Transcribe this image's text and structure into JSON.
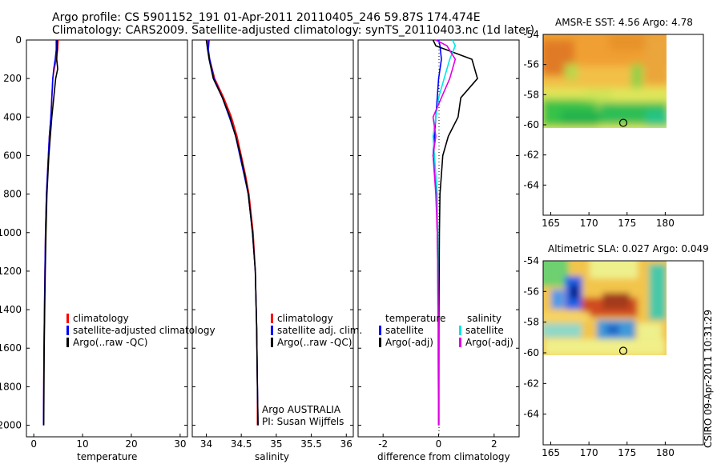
{
  "header": {
    "line1": "Argo profile: CS 5901152_191 01-Apr-2011 20110405_246 59.87S 174.474E",
    "line2": "Climatology: CARS2009. Satellite-adjusted climatology: synTS_20110403.nc (1d later)"
  },
  "footer": {
    "vertical_stamp": "CSIRO 09-Apr-2011 10:31:29"
  },
  "colors": {
    "climatology": "#ff0000",
    "satellite": "#0000ff",
    "argo": "#000000",
    "salinity_satellite": "#00e5e5",
    "salinity_argo": "#e000e0"
  },
  "chart_data": [
    {
      "type": "line",
      "xlabel": "temperature",
      "ylabel": "",
      "xlim": [
        -1.5,
        31.5
      ],
      "ylim": [
        2060,
        0
      ],
      "x_ticks": [
        "0",
        "10",
        "20",
        "30"
      ],
      "y_ticks": [
        "0",
        "200",
        "400",
        "600",
        "800",
        "1000",
        "1200",
        "1400",
        "1600",
        "1800",
        "2000"
      ],
      "legend": [
        "climatology",
        "satellite-adjusted climatology",
        "Argo(..raw -QC)"
      ],
      "series": [
        {
          "name": "climatology",
          "color": "red",
          "x": [
            5.0,
            4.9,
            4.6,
            4.2,
            3.9,
            3.7,
            3.5,
            3.2,
            3.0,
            2.8,
            2.6,
            2.4,
            2.3,
            2.2,
            2.1,
            2.05,
            2.0
          ],
          "y": [
            0,
            50,
            100,
            150,
            200,
            300,
            400,
            500,
            600,
            700,
            800,
            1000,
            1200,
            1400,
            1600,
            1800,
            2000
          ]
        },
        {
          "name": "satellite-adjusted climatology",
          "color": "blue",
          "x": [
            4.6,
            4.6,
            4.4,
            4.1,
            3.9,
            3.7,
            3.5,
            3.2,
            3.0,
            2.8,
            2.6,
            2.4,
            2.3,
            2.2,
            2.1,
            2.05,
            2.0
          ],
          "y": [
            0,
            50,
            100,
            150,
            200,
            300,
            400,
            500,
            600,
            700,
            800,
            1000,
            1200,
            1400,
            1600,
            1800,
            2000
          ]
        },
        {
          "name": "Argo(..raw -QC)",
          "color": "black",
          "x": [
            4.8,
            4.8,
            4.7,
            4.9,
            4.5,
            4.1,
            3.7,
            3.4,
            3.1,
            2.9,
            2.7,
            2.5,
            2.35,
            2.25,
            2.15,
            2.1,
            2.05
          ],
          "y": [
            0,
            40,
            100,
            150,
            200,
            300,
            400,
            500,
            600,
            700,
            800,
            1000,
            1200,
            1400,
            1600,
            1800,
            2000
          ]
        }
      ]
    },
    {
      "type": "line",
      "xlabel": "salinity",
      "ylabel": "",
      "xlim": [
        33.8,
        36.1
      ],
      "ylim": [
        2060,
        0
      ],
      "x_ticks": [
        "34",
        "34.5",
        "35",
        "35.5",
        "36"
      ],
      "legend": [
        "climatology",
        "satellite adj. clim.",
        "Argo(..raw -QC)"
      ],
      "annotation": [
        "Argo AUSTRALIA",
        "PI: Susan Wijffels"
      ],
      "series": [
        {
          "name": "climatology",
          "color": "red",
          "x": [
            34.02,
            34.02,
            34.05,
            34.12,
            34.25,
            34.36,
            34.44,
            34.5,
            34.56,
            34.61,
            34.67,
            34.7,
            34.72,
            34.73,
            34.73
          ],
          "y": [
            0,
            50,
            100,
            200,
            300,
            400,
            500,
            600,
            700,
            800,
            1000,
            1200,
            1500,
            1800,
            2000
          ]
        },
        {
          "name": "satellite adj. clim.",
          "color": "blue",
          "x": [
            34.04,
            34.03,
            34.05,
            34.11,
            34.23,
            34.33,
            34.42,
            34.48,
            34.54,
            34.6,
            34.66,
            34.7,
            34.72,
            34.73,
            34.74
          ],
          "y": [
            0,
            50,
            100,
            200,
            300,
            400,
            500,
            600,
            700,
            800,
            1000,
            1200,
            1500,
            1800,
            2000
          ]
        },
        {
          "name": "Argo(..raw -QC)",
          "color": "black",
          "x": [
            34.0,
            34.02,
            34.04,
            34.1,
            34.23,
            34.34,
            34.42,
            34.49,
            34.55,
            34.6,
            34.66,
            34.7,
            34.72,
            34.73,
            34.74
          ],
          "y": [
            0,
            50,
            100,
            200,
            300,
            400,
            500,
            600,
            700,
            800,
            1000,
            1200,
            1500,
            1800,
            2000
          ]
        }
      ]
    },
    {
      "type": "line",
      "xlabel": "difference from climatology",
      "ylabel": "",
      "xlim": [
        -2.9,
        2.9
      ],
      "ylim": [
        2060,
        0
      ],
      "x_ticks": [
        "-2",
        "0",
        "2"
      ],
      "legend_groups": [
        "temperature",
        "salinity"
      ],
      "legend": [
        "satellite",
        "Argo(-adj)",
        "satellite",
        "Argo(-adj)"
      ],
      "series": [
        {
          "name": "temperature satellite",
          "color": "blue",
          "x": [
            0.0,
            0.05,
            0.1,
            0.0,
            -0.05,
            -0.1,
            -0.15,
            -0.2,
            -0.12,
            -0.08,
            -0.05,
            -0.03,
            -0.02,
            -0.01,
            0.0
          ],
          "y": [
            0,
            30,
            100,
            200,
            300,
            400,
            500,
            600,
            700,
            800,
            1000,
            1200,
            1500,
            1800,
            2000
          ]
        },
        {
          "name": "temperature Argo(-adj)",
          "color": "black",
          "x": [
            -0.2,
            -0.1,
            1.2,
            1.4,
            0.8,
            0.7,
            0.35,
            0.15,
            0.1,
            0.05,
            0.03,
            0.02,
            0.01,
            0.01,
            0.01
          ],
          "y": [
            0,
            30,
            100,
            200,
            300,
            400,
            500,
            600,
            700,
            800,
            1000,
            1200,
            1500,
            1800,
            2000
          ]
        },
        {
          "name": "salinity satellite",
          "color": "cyan",
          "x": [
            0.5,
            0.6,
            0.4,
            0.2,
            0.0,
            -0.1,
            -0.2,
            -0.15,
            -0.1,
            -0.05,
            -0.03,
            -0.02,
            -0.02,
            -0.01,
            -0.01
          ],
          "y": [
            0,
            30,
            100,
            200,
            300,
            400,
            500,
            600,
            700,
            800,
            1000,
            1200,
            1500,
            1800,
            2000
          ]
        },
        {
          "name": "salinity Argo(-adj)",
          "color": "magenta",
          "x": [
            -0.1,
            0.3,
            0.6,
            0.4,
            0.1,
            -0.2,
            -0.1,
            -0.2,
            -0.15,
            -0.1,
            -0.05,
            -0.03,
            -0.01,
            0.0,
            0.0
          ],
          "y": [
            0,
            30,
            100,
            200,
            300,
            400,
            500,
            600,
            700,
            800,
            1000,
            1200,
            1500,
            1800,
            2000
          ]
        }
      ]
    },
    {
      "type": "heatmap",
      "title": "AMSR-E SST: 4.56 Argo: 4.78",
      "x_ticks": [
        "165",
        "170",
        "175",
        "180"
      ],
      "y_ticks": [
        "-54",
        "-56",
        "-58",
        "-60",
        "-62",
        "-64"
      ],
      "xlim": [
        164,
        185
      ],
      "ylim": [
        -66,
        -54
      ],
      "data_extent": {
        "x": [
          164,
          180
        ],
        "y": [
          -60,
          -54
        ]
      },
      "marker": {
        "lon": 174.5,
        "lat": -59.87
      }
    },
    {
      "type": "heatmap",
      "title": "Altimetric SLA: 0.027 Argo: 0.049",
      "x_ticks": [
        "165",
        "170",
        "175",
        "180"
      ],
      "y_ticks": [
        "-54",
        "-56",
        "-58",
        "-60",
        "-62",
        "-64"
      ],
      "xlim": [
        164,
        185
      ],
      "ylim": [
        -66,
        -54
      ],
      "data_extent": {
        "x": [
          164,
          180
        ],
        "y": [
          -60,
          -54
        ]
      },
      "marker": {
        "lon": 174.5,
        "lat": -59.87
      }
    }
  ]
}
